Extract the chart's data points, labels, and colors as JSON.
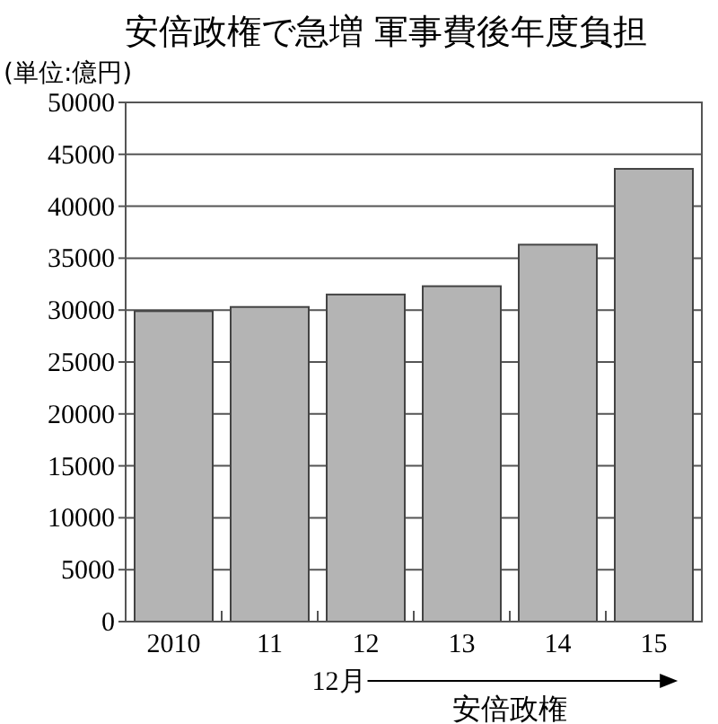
{
  "chart_data": {
    "type": "bar",
    "title": "安倍政権で急増 軍事費後年度負担",
    "ylabel": "(単位:億円)",
    "categories": [
      "2010",
      "11",
      "12",
      "13",
      "14",
      "15"
    ],
    "values": [
      29900,
      30300,
      31500,
      32300,
      36300,
      43600
    ],
    "color": "#b4b4b4",
    "ylim": [
      0,
      50000
    ],
    "yticks": [
      0,
      5000,
      10000,
      15000,
      20000,
      25000,
      30000,
      35000,
      40000,
      45000,
      50000
    ],
    "grid": "y",
    "annotations": [
      "12月",
      "安倍政権"
    ]
  }
}
